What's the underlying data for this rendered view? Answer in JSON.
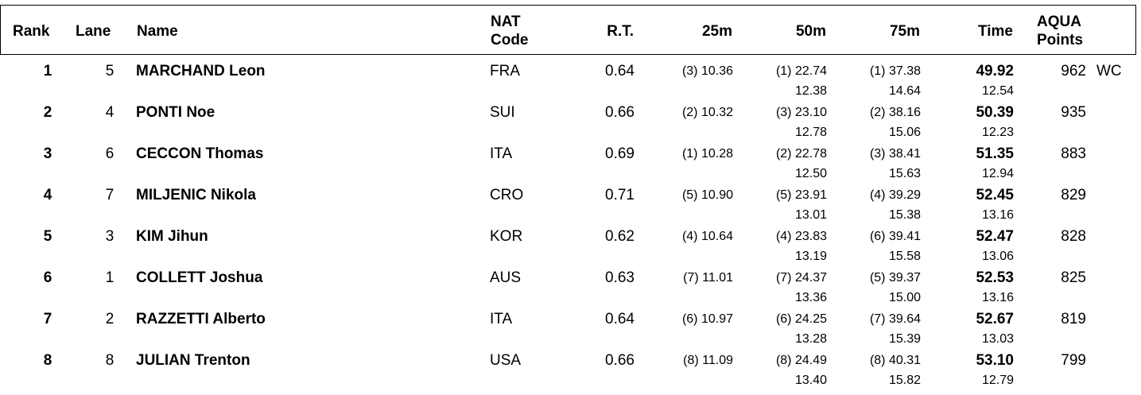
{
  "headers": {
    "rank": "Rank",
    "lane": "Lane",
    "name": "Name",
    "nat_line1": "NAT",
    "nat_line2": "Code",
    "rt": "R.T.",
    "s25": "25m",
    "s50": "50m",
    "s75": "75m",
    "time": "Time",
    "points_line1": "AQUA",
    "points_line2": "Points"
  },
  "rows": [
    {
      "rank": "1",
      "lane": "5",
      "name": "MARCHAND Leon",
      "nat": "FRA",
      "rt": "0.64",
      "s25": "(3) 10.36",
      "s50": "(1) 22.74",
      "s50_split": "12.38",
      "s75": "(1) 37.38",
      "s75_split": "14.64",
      "time": "49.92",
      "time_split": "12.54",
      "points": "962",
      "record": "WC"
    },
    {
      "rank": "2",
      "lane": "4",
      "name": "PONTI Noe",
      "nat": "SUI",
      "rt": "0.66",
      "s25": "(2) 10.32",
      "s50": "(3) 23.10",
      "s50_split": "12.78",
      "s75": "(2) 38.16",
      "s75_split": "15.06",
      "time": "50.39",
      "time_split": "12.23",
      "points": "935",
      "record": ""
    },
    {
      "rank": "3",
      "lane": "6",
      "name": "CECCON Thomas",
      "nat": "ITA",
      "rt": "0.69",
      "s25": "(1) 10.28",
      "s50": "(2) 22.78",
      "s50_split": "12.50",
      "s75": "(3) 38.41",
      "s75_split": "15.63",
      "time": "51.35",
      "time_split": "12.94",
      "points": "883",
      "record": ""
    },
    {
      "rank": "4",
      "lane": "7",
      "name": "MILJENIC Nikola",
      "nat": "CRO",
      "rt": "0.71",
      "s25": "(5) 10.90",
      "s50": "(5) 23.91",
      "s50_split": "13.01",
      "s75": "(4) 39.29",
      "s75_split": "15.38",
      "time": "52.45",
      "time_split": "13.16",
      "points": "829",
      "record": ""
    },
    {
      "rank": "5",
      "lane": "3",
      "name": "KIM Jihun",
      "nat": "KOR",
      "rt": "0.62",
      "s25": "(4) 10.64",
      "s50": "(4) 23.83",
      "s50_split": "13.19",
      "s75": "(6) 39.41",
      "s75_split": "15.58",
      "time": "52.47",
      "time_split": "13.06",
      "points": "828",
      "record": ""
    },
    {
      "rank": "6",
      "lane": "1",
      "name": "COLLETT Joshua",
      "nat": "AUS",
      "rt": "0.63",
      "s25": "(7) 11.01",
      "s50": "(7) 24.37",
      "s50_split": "13.36",
      "s75": "(5) 39.37",
      "s75_split": "15.00",
      "time": "52.53",
      "time_split": "13.16",
      "points": "825",
      "record": ""
    },
    {
      "rank": "7",
      "lane": "2",
      "name": "RAZZETTI Alberto",
      "nat": "ITA",
      "rt": "0.64",
      "s25": "(6) 10.97",
      "s50": "(6) 24.25",
      "s50_split": "13.28",
      "s75": "(7) 39.64",
      "s75_split": "15.39",
      "time": "52.67",
      "time_split": "13.03",
      "points": "819",
      "record": ""
    },
    {
      "rank": "8",
      "lane": "8",
      "name": "JULIAN Trenton",
      "nat": "USA",
      "rt": "0.66",
      "s25": "(8) 11.09",
      "s50": "(8) 24.49",
      "s50_split": "13.40",
      "s75": "(8) 40.31",
      "s75_split": "15.82",
      "time": "53.10",
      "time_split": "12.79",
      "points": "799",
      "record": ""
    }
  ]
}
